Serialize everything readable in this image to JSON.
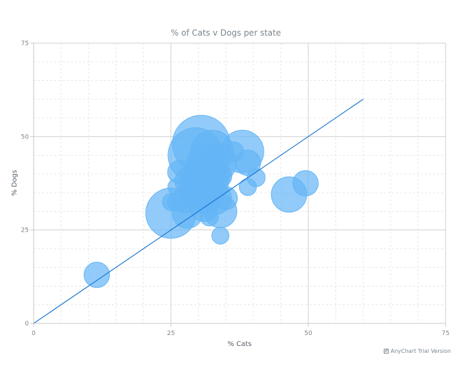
{
  "chart_data": {
    "type": "bubble",
    "title": "% of Cats v Dogs per state",
    "xlabel": "% Cats",
    "ylabel": "% Dogs",
    "xlim": [
      0,
      75
    ],
    "ylim": [
      0,
      75
    ],
    "x_ticks": [
      "0",
      "25",
      "50",
      "75"
    ],
    "y_ticks": [
      "0",
      "25",
      "50",
      "75"
    ],
    "grid": true,
    "bubble_color": "#64b5f6",
    "line_color": "#1976d2",
    "trend_line": {
      "x": [
        0,
        60
      ],
      "y": [
        0,
        60
      ]
    },
    "series": [
      {
        "points": [
          {
            "x": 30.5,
            "y": 48.0,
            "size": 1.0
          },
          {
            "x": 29.5,
            "y": 45.0,
            "size": 0.95
          },
          {
            "x": 25.0,
            "y": 29.5,
            "size": 0.85
          },
          {
            "x": 32.5,
            "y": 46.0,
            "size": 0.7
          },
          {
            "x": 38.0,
            "y": 46.0,
            "size": 0.7
          },
          {
            "x": 31.5,
            "y": 42.5,
            "size": 0.65
          },
          {
            "x": 33.5,
            "y": 43.0,
            "size": 0.6
          },
          {
            "x": 30.5,
            "y": 39.0,
            "size": 0.6
          },
          {
            "x": 32.0,
            "y": 37.5,
            "size": 0.6
          },
          {
            "x": 30.0,
            "y": 35.0,
            "size": 0.55
          },
          {
            "x": 31.0,
            "y": 34.0,
            "size": 0.55
          },
          {
            "x": 33.0,
            "y": 33.5,
            "size": 0.5
          },
          {
            "x": 34.0,
            "y": 30.0,
            "size": 0.5
          },
          {
            "x": 46.5,
            "y": 34.5,
            "size": 0.55
          },
          {
            "x": 28.5,
            "y": 38.0,
            "size": 0.45
          },
          {
            "x": 29.5,
            "y": 36.0,
            "size": 0.5
          },
          {
            "x": 28.0,
            "y": 29.5,
            "size": 0.45
          },
          {
            "x": 39.0,
            "y": 43.0,
            "size": 0.35
          },
          {
            "x": 49.5,
            "y": 37.5,
            "size": 0.35
          },
          {
            "x": 11.5,
            "y": 13.0,
            "size": 0.35
          },
          {
            "x": 26.5,
            "y": 40.5,
            "size": 0.3
          },
          {
            "x": 27.5,
            "y": 33.0,
            "size": 0.35
          },
          {
            "x": 33.0,
            "y": 39.5,
            "size": 0.45
          },
          {
            "x": 31.0,
            "y": 31.0,
            "size": 0.4
          },
          {
            "x": 32.5,
            "y": 35.5,
            "size": 0.4
          },
          {
            "x": 36.5,
            "y": 46.0,
            "size": 0.22
          },
          {
            "x": 40.5,
            "y": 39.0,
            "size": 0.2
          },
          {
            "x": 39.0,
            "y": 36.5,
            "size": 0.18
          },
          {
            "x": 34.0,
            "y": 23.5,
            "size": 0.18
          },
          {
            "x": 32.0,
            "y": 28.5,
            "size": 0.2
          },
          {
            "x": 26.0,
            "y": 36.5,
            "size": 0.18
          },
          {
            "x": 25.0,
            "y": 32.5,
            "size": 0.18
          },
          {
            "x": 26.0,
            "y": 32.5,
            "size": 0.2
          },
          {
            "x": 35.0,
            "y": 33.5,
            "size": 0.3
          },
          {
            "x": 34.0,
            "y": 39.5,
            "size": 0.3
          }
        ]
      }
    ]
  },
  "credit": "AnyChart Trial Version"
}
